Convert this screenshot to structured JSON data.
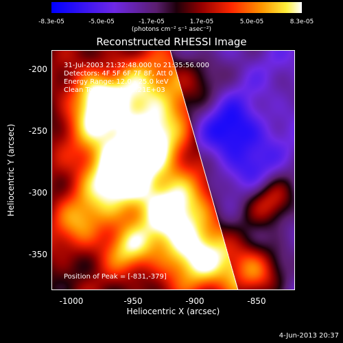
{
  "colorbar": {
    "ticks": [
      "-8.3e-05",
      "-5.0e-05",
      "-1.7e-05",
      "1.7e-05",
      "5.0e-05",
      "8.3e-05"
    ],
    "units": "(photons cm⁻² s⁻¹ asec⁻²)"
  },
  "title": "Reconstructed RHESSI Image",
  "info": {
    "time": "31-Jul-2003 21:32:48.000 to 21:35:56.000",
    "detectors": "Detectors: 4F 5F 6F 7F 8F, Att 0",
    "energy": "Energy Range: 12.0 - 25.0 keV",
    "clean": "Clean     Total counts: 1.21E+03",
    "peak": "Position of Peak = [-831,-379]"
  },
  "axes": {
    "xlabel": "Heliocentric X (arcsec)",
    "ylabel": "Heliocentric Y (arcsec)",
    "xticks": [
      "-1000",
      "-950",
      "-900",
      "-850"
    ],
    "yticks": [
      "-200",
      "-250",
      "-300",
      "-350"
    ]
  },
  "timestamp": "4-Jun-2013 20:37",
  "colors": {
    "low": "#0000ff",
    "mid": "#ff0000",
    "high": "#ffffff",
    "limb_line": "#ffffff"
  }
}
